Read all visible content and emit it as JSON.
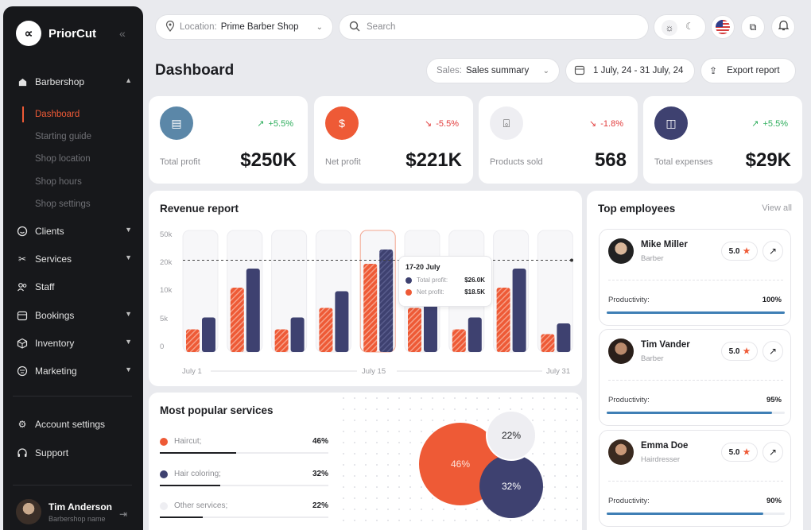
{
  "app": {
    "name": "PriorCut"
  },
  "sidebar": {
    "group": "Barbershop",
    "sub_items": [
      "Dashboard",
      "Starting guide",
      "Shop location",
      "Shop hours",
      "Shop settings"
    ],
    "items": [
      "Clients",
      "Services",
      "Staff",
      "Bookings",
      "Inventory",
      "Marketing"
    ],
    "bottom": [
      "Account settings",
      "Support"
    ],
    "user": {
      "name": "Tim Anderson",
      "role": "Barbershop name"
    }
  },
  "header": {
    "location_label": "Location:",
    "location_value": "Prime Barber Shop",
    "search_placeholder": "Search"
  },
  "page": {
    "title": "Dashboard",
    "sales_label": "Sales:",
    "sales_value": "Sales summary",
    "date_range": "1 July, 24 - 31 July, 24",
    "export_label": "Export report"
  },
  "kpis": [
    {
      "label": "Total profit",
      "value": "$250K",
      "change": "+5.5%",
      "trend": "up",
      "color": "#5b87a8",
      "icon": "wallet-icon"
    },
    {
      "label": "Net profit",
      "value": "$221K",
      "change": "-5.5%",
      "trend": "down",
      "color": "#ee5a36",
      "icon": "coin-icon"
    },
    {
      "label": "Products sold",
      "value": "568",
      "change": "-1.8%",
      "trend": "down",
      "color": "#eeeef2",
      "icon": "basket-icon"
    },
    {
      "label": "Total expenses",
      "value": "$29K",
      "change": "+5.5%",
      "trend": "up",
      "color": "#3e4170",
      "icon": "purse-icon"
    }
  ],
  "revenue": {
    "title": "Revenue report",
    "tooltip": {
      "title": "17-20 July",
      "rows": [
        {
          "label": "Total profit:",
          "value": "$26.0K"
        },
        {
          "label": "Net profit:",
          "value": "$18.5K"
        }
      ]
    }
  },
  "chart_data": {
    "type": "bar",
    "title": "Revenue report",
    "y_ticks": [
      "50k",
      "20k",
      "10k",
      "5k",
      "0"
    ],
    "x_labels": [
      "July 1",
      "July 15",
      "July 31"
    ],
    "categories": [
      "1",
      "2",
      "3",
      "4",
      "5",
      "6",
      "7",
      "8",
      "9"
    ],
    "series": [
      {
        "name": "Net profit",
        "color": "#ee5a36",
        "values": [
          0.19,
          0.54,
          0.19,
          0.37,
          0.74,
          0.37,
          0.19,
          0.54,
          0.15
        ]
      },
      {
        "name": "Total profit",
        "color": "#3e4170",
        "values": [
          0.29,
          0.7,
          0.29,
          0.51,
          0.86,
          0.61,
          0.29,
          0.7,
          0.24
        ]
      }
    ],
    "reference_line": 0.85,
    "highlight_index": 4
  },
  "services": {
    "title": "Most popular services",
    "items": [
      {
        "label": "Haircut;",
        "pct": "46%",
        "share": 0.46,
        "color": "#ee5a36"
      },
      {
        "label": "Hair coloring;",
        "pct": "32%",
        "share": 0.32,
        "color": "#3e4170"
      },
      {
        "label": "Other services;",
        "pct": "22%",
        "share": 0.22,
        "color": "#eeeef2"
      }
    ]
  },
  "employees": {
    "title": "Top employees",
    "view_all": "View all",
    "productivity_label": "Productivity:",
    "list": [
      {
        "name": "Mike Miller",
        "role": "Barber",
        "rating": "5.0",
        "productivity": "100%",
        "fill": 1.0
      },
      {
        "name": "Tim Vander",
        "role": "Barber",
        "rating": "5.0",
        "productivity": "95%",
        "fill": 0.93
      },
      {
        "name": "Emma Doe",
        "role": "Hairdresser",
        "rating": "5.0",
        "productivity": "90%",
        "fill": 0.88
      }
    ]
  }
}
